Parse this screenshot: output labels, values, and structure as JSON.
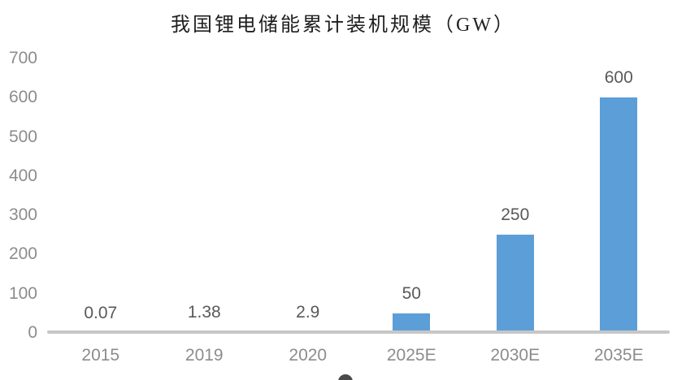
{
  "chart_data": {
    "type": "bar",
    "title": "我国锂电储能累计装机规模（GW）",
    "categories": [
      "2015",
      "2019",
      "2020",
      "2025E",
      "2030E",
      "2035E"
    ],
    "values": [
      0.07,
      1.38,
      2.9,
      50,
      250,
      600
    ],
    "data_labels": [
      "0.07",
      "1.38",
      "2.9",
      "50",
      "250",
      "600"
    ],
    "xlabel": "",
    "ylabel": "",
    "ylim": [
      0,
      700
    ],
    "yticks": [
      0,
      100,
      200,
      300,
      400,
      500,
      600,
      700
    ],
    "grid": false,
    "legend_position": "none",
    "colors": {
      "bar": "#5c9ed7",
      "axis_line": "#c6c6c6",
      "tick_labels": "#8c8c8c",
      "data_labels": "#595959",
      "title": "#1f1f1f"
    }
  }
}
